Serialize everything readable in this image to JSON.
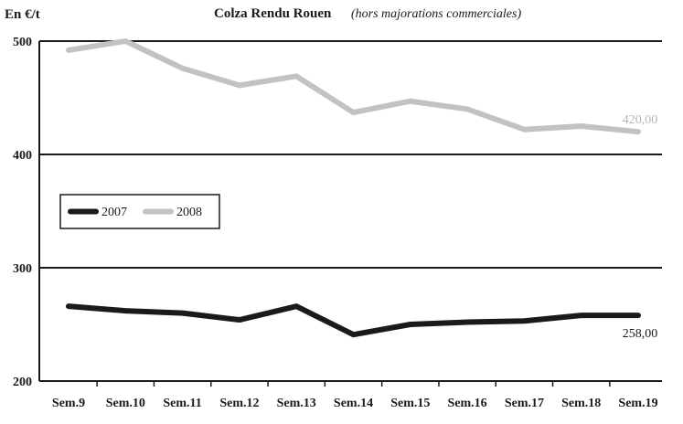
{
  "chart_data": {
    "type": "line",
    "title": "Colza Rendu Rouen",
    "subtitle": "(hors majorations commerciales)",
    "ylabel": "En €/t",
    "xlabel": "",
    "categories": [
      "Sem.9",
      "Sem.10",
      "Sem.11",
      "Sem.12",
      "Sem.13",
      "Sem.14",
      "Sem.15",
      "Sem.16",
      "Sem.17",
      "Sem.18",
      "Sem.19"
    ],
    "ylim": [
      200,
      500
    ],
    "yticks": [
      500,
      400,
      300,
      200
    ],
    "grid": true,
    "legend_position": "left",
    "series": [
      {
        "name": "2007",
        "color": "#1a1a1a",
        "values": [
          266,
          262,
          260,
          254,
          266,
          241,
          250,
          252,
          253,
          258,
          258
        ],
        "end_label": "258,00"
      },
      {
        "name": "2008",
        "color": "#c2c2c2",
        "values": [
          492,
          500,
          476,
          461,
          469,
          437,
          447,
          440,
          422,
          425,
          420
        ],
        "end_label": "420,00"
      }
    ]
  }
}
